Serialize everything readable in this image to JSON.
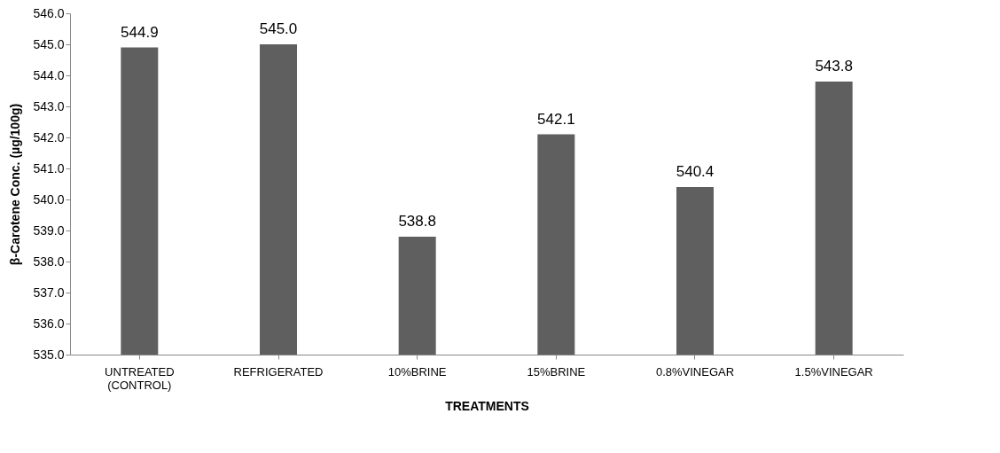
{
  "chart_data": {
    "type": "bar",
    "xlabel": "TREATMENTS",
    "ylabel": "β-Carotene Conc. (µg/100g)",
    "categories": [
      "UNTREATED (CONTROL)",
      "REFRIGERATED",
      "10%BRINE",
      "15%BRINE",
      "0.8%VINEGAR",
      "1.5%VINEGAR"
    ],
    "values": [
      544.9,
      545.0,
      538.8,
      542.1,
      540.4,
      543.8
    ],
    "value_labels": [
      "544.9",
      "545.0",
      "538.8",
      "542.1",
      "540.4",
      "543.8"
    ],
    "color": "#5f5f5f",
    "ylim": [
      535,
      546
    ],
    "yticks": [
      {
        "value": 535,
        "label": "535.0"
      },
      {
        "value": 536,
        "label": "536.0"
      },
      {
        "value": 537,
        "label": "537.0"
      },
      {
        "value": 538,
        "label": "538.0"
      },
      {
        "value": 539,
        "label": "539.0"
      },
      {
        "value": 540,
        "label": "540.0"
      },
      {
        "value": 541,
        "label": "541.0"
      },
      {
        "value": 542,
        "label": "542.0"
      },
      {
        "value": 543,
        "label": "543.0"
      },
      {
        "value": 544,
        "label": "544.0"
      },
      {
        "value": 545,
        "label": "545.0"
      },
      {
        "value": 546,
        "label": "546.0"
      }
    ],
    "grid": false
  }
}
